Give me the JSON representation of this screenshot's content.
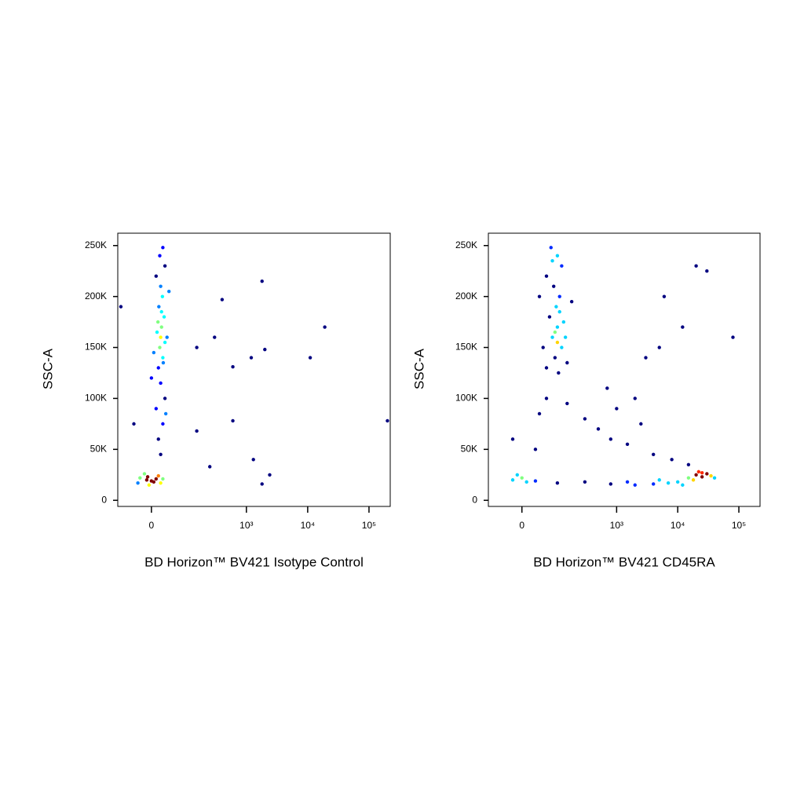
{
  "chart_data": [
    {
      "type": "scatter",
      "xlabel": "BD Horizon™ BV421 Isotype Control",
      "ylabel": "SSC-A",
      "xscale": "biexponential",
      "xlim": [
        -92,
        222000
      ],
      "ylim": [
        -6000,
        262144
      ],
      "xticks": [
        0,
        {
          "value": 1000,
          "label": "10³"
        },
        {
          "value": 10000,
          "label": "10⁴"
        },
        {
          "value": 100000,
          "label": "10⁵"
        }
      ],
      "yticks": [
        0,
        {
          "value": 50000,
          "label": "50K"
        },
        {
          "value": 100000,
          "label": "100K"
        },
        {
          "value": 150000,
          "label": "150K"
        },
        {
          "value": 200000,
          "label": "200K"
        },
        {
          "value": 250000,
          "label": "250K"
        }
      ],
      "x": [
        -10,
        5,
        -25,
        15,
        -5,
        20,
        -15,
        10,
        0,
        -30,
        25,
        -8,
        20,
        15,
        25,
        10,
        30,
        20,
        15,
        25,
        18,
        30,
        12,
        22,
        28,
        16,
        24,
        20,
        10,
        30,
        18,
        25,
        35,
        5,
        20,
        22,
        14,
        26,
        40,
        0,
        32,
        1800,
        400,
        2000,
        1200,
        11000,
        19000,
        600,
        2400,
        1800,
        1300,
        250,
        150,
        -80,
        -40,
        600,
        300,
        150,
        200000
      ],
      "values": [
        20000,
        18000,
        22000,
        24000,
        15000,
        17000,
        26000,
        21000,
        19000,
        17000,
        21000,
        23000,
        45000,
        60000,
        75000,
        90000,
        100000,
        115000,
        130000,
        140000,
        150000,
        155000,
        165000,
        170000,
        180000,
        190000,
        200000,
        210000,
        220000,
        230000,
        240000,
        248000,
        160000,
        145000,
        160000,
        185000,
        175000,
        135000,
        205000,
        120000,
        85000,
        215000,
        197000,
        148000,
        140000,
        140000,
        170000,
        78000,
        25000,
        16000,
        40000,
        33000,
        68000,
        190000,
        75000,
        131000,
        160000,
        150000,
        78000
      ]
    },
    {
      "type": "scatter",
      "xlabel": "BD Horizon™ BV421 CD45RA",
      "ylabel": "SSC-A",
      "xscale": "biexponential",
      "xlim": [
        -92,
        222000
      ],
      "ylim": [
        -6000,
        262144
      ],
      "xticks": [
        0,
        {
          "value": 1000,
          "label": "10³"
        },
        {
          "value": 10000,
          "label": "10⁴"
        },
        {
          "value": 100000,
          "label": "10⁵"
        }
      ],
      "yticks": [
        0,
        {
          "value": 50000,
          "label": "50K"
        },
        {
          "value": 100000,
          "label": "100K"
        },
        {
          "value": 150000,
          "label": "150K"
        },
        {
          "value": 200000,
          "label": "200K"
        },
        {
          "value": 250000,
          "label": "250K"
        }
      ],
      "x": [
        60,
        90,
        120,
        80,
        100,
        70,
        130,
        95,
        110,
        85,
        60,
        120,
        100,
        75,
        140,
        50,
        100,
        90,
        110,
        40,
        180,
        150,
        105,
        80,
        60,
        40,
        150,
        300,
        500,
        800,
        1500,
        2500,
        4000,
        700,
        3000,
        5000,
        1000,
        8000,
        15000,
        20000,
        30000,
        12000,
        2000,
        30,
        -20,
        6000,
        80000,
        -20,
        0,
        10,
        -10,
        30,
        100,
        300,
        800,
        2000,
        4000,
        7000,
        10000,
        15000,
        20000,
        25000,
        30000,
        35000,
        18000,
        12000,
        25000,
        22000,
        40000,
        5000,
        1500
      ],
      "values": [
        130000,
        140000,
        150000,
        160000,
        170000,
        180000,
        175000,
        190000,
        200000,
        210000,
        220000,
        230000,
        240000,
        248000,
        160000,
        150000,
        155000,
        165000,
        185000,
        200000,
        195000,
        135000,
        125000,
        235000,
        100000,
        85000,
        95000,
        80000,
        70000,
        60000,
        55000,
        75000,
        45000,
        110000,
        140000,
        150000,
        90000,
        40000,
        35000,
        230000,
        225000,
        170000,
        100000,
        50000,
        60000,
        200000,
        160000,
        20000,
        22000,
        18000,
        25000,
        19000,
        17000,
        18000,
        16000,
        15000,
        16000,
        17000,
        18000,
        22000,
        25000,
        27000,
        26000,
        24000,
        20000,
        15000,
        23000,
        28000,
        22000,
        20000,
        18000
      ]
    }
  ]
}
